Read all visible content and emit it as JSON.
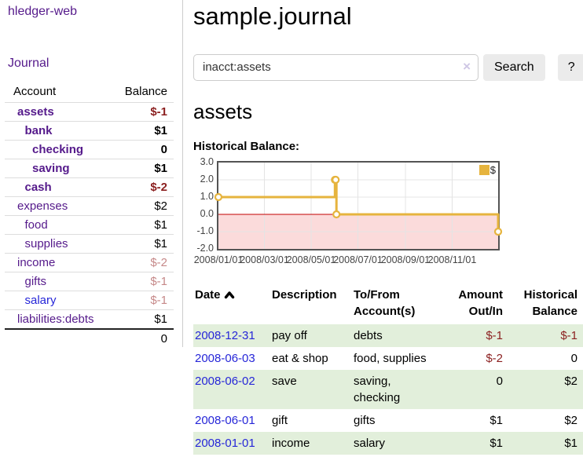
{
  "colors": {
    "link_purple": "#551a8b",
    "link_blue": "#2626d8",
    "neg_strong": "#8b1f1f",
    "neg_dim": "#c68989",
    "row_green": "#e2efdb",
    "chart_line": "#e6b43e",
    "chart_negative_fill": "#fbdbdb",
    "chart_zero_line": "#c30000",
    "chart_border": "#545454",
    "chart_grid": "#e4e4e4",
    "divider": "#cccccc",
    "button_bg": "#ebebeb",
    "clear_icon": "#cfc7e5"
  },
  "sidebar": {
    "app_title": "hledger-web",
    "journal_link": "Journal",
    "accounts_table": {
      "headers": {
        "account": "Account",
        "balance": "Balance"
      },
      "rows": [
        {
          "name": "assets",
          "depth": 1,
          "bold": true,
          "link": "purple",
          "balance": "$-1",
          "balance_class": "neg-strong"
        },
        {
          "name": "bank",
          "depth": 2,
          "bold": true,
          "link": "purple",
          "balance": "$1",
          "balance_class": "plain"
        },
        {
          "name": "checking",
          "depth": 3,
          "bold": true,
          "link": "purple",
          "balance": "0",
          "balance_class": "plain"
        },
        {
          "name": "saving",
          "depth": 3,
          "bold": true,
          "link": "purple",
          "balance": "$1",
          "balance_class": "plain"
        },
        {
          "name": "cash",
          "depth": 2,
          "bold": true,
          "link": "purple",
          "balance": "$-2",
          "balance_class": "neg-strong"
        },
        {
          "name": "expenses",
          "depth": 1,
          "bold": false,
          "link": "purple",
          "balance": "$2",
          "balance_class": "plain"
        },
        {
          "name": "food",
          "depth": 2,
          "bold": false,
          "link": "purple",
          "balance": "$1",
          "balance_class": "plain"
        },
        {
          "name": "supplies",
          "depth": 2,
          "bold": false,
          "link": "purple",
          "balance": "$1",
          "balance_class": "plain"
        },
        {
          "name": "income",
          "depth": 1,
          "bold": false,
          "link": "purple",
          "balance": "$-2",
          "balance_class": "neg-dim"
        },
        {
          "name": "gifts",
          "depth": 2,
          "bold": false,
          "link": "purple",
          "balance": "$-1",
          "balance_class": "neg-dim"
        },
        {
          "name": "salary",
          "depth": 2,
          "bold": false,
          "link": "blue",
          "balance": "$-1",
          "balance_class": "neg-dim"
        },
        {
          "name": "liabilities:debts",
          "depth": 1,
          "bold": false,
          "link": "purple",
          "balance": "$1",
          "balance_class": "plain"
        }
      ],
      "total": "0"
    }
  },
  "header": {
    "title": "sample.journal"
  },
  "search": {
    "value": "inacct:assets",
    "clear_icon": "×",
    "button_label": "Search",
    "help_label": "?"
  },
  "account_page": {
    "heading": "assets",
    "chart_label": "Historical Balance:"
  },
  "chart_data": {
    "type": "line",
    "step": true,
    "title": "Historical Balance",
    "series": [
      {
        "name": "$",
        "points": [
          [
            "2008-01-01",
            1
          ],
          [
            "2008-06-01",
            2
          ],
          [
            "2008-06-02",
            2
          ],
          [
            "2008-06-03",
            0
          ],
          [
            "2008-12-31",
            -1
          ]
        ]
      }
    ],
    "x_range": [
      "2008-01-01",
      "2008-12-31"
    ],
    "xticks": [
      {
        "date": "2008-01-01",
        "label": "2008/01/01"
      },
      {
        "date": "2008-03-01",
        "label": "2008/03/01"
      },
      {
        "date": "2008-05-01",
        "label": "2008/05/01"
      },
      {
        "date": "2008-07-01",
        "label": "2008/07/01"
      },
      {
        "date": "2008-09-01",
        "label": "2008/09/01"
      },
      {
        "date": "2008-11-01",
        "label": "2008/11/01"
      }
    ],
    "yticks": [
      "3.0",
      "2.0",
      "1.0",
      "0.0",
      "-1.0",
      "-2.0"
    ],
    "ylim": [
      -2,
      3
    ],
    "grid": true,
    "legend": {
      "label": "$",
      "position": "top-right"
    },
    "negative_region_shaded": true
  },
  "register": {
    "headers": [
      "Date",
      "Description",
      "To/From Account(s)",
      "Amount Out/In",
      "Historical Balance"
    ],
    "sort_icon": "chevron-up",
    "rows": [
      {
        "date": "2008-12-31",
        "description": "pay off",
        "accounts": "debts",
        "amount": "$-1",
        "amount_class": "neg-strong",
        "balance": "$-1",
        "balance_class": "neg-strong",
        "highlight": true
      },
      {
        "date": "2008-06-03",
        "description": "eat & shop",
        "accounts": "food, supplies",
        "amount": "$-2",
        "amount_class": "neg-strong",
        "balance": "0",
        "balance_class": "plain",
        "highlight": false
      },
      {
        "date": "2008-06-02",
        "description": "save",
        "accounts": "saving, checking",
        "amount": "0",
        "amount_class": "plain",
        "balance": "$2",
        "balance_class": "plain",
        "highlight": true
      },
      {
        "date": "2008-06-01",
        "description": "gift",
        "accounts": "gifts",
        "amount": "$1",
        "amount_class": "plain",
        "balance": "$2",
        "balance_class": "plain",
        "highlight": false
      },
      {
        "date": "2008-01-01",
        "description": "income",
        "accounts": "salary",
        "amount": "$1",
        "amount_class": "plain",
        "balance": "$1",
        "balance_class": "plain",
        "highlight": true
      }
    ]
  }
}
